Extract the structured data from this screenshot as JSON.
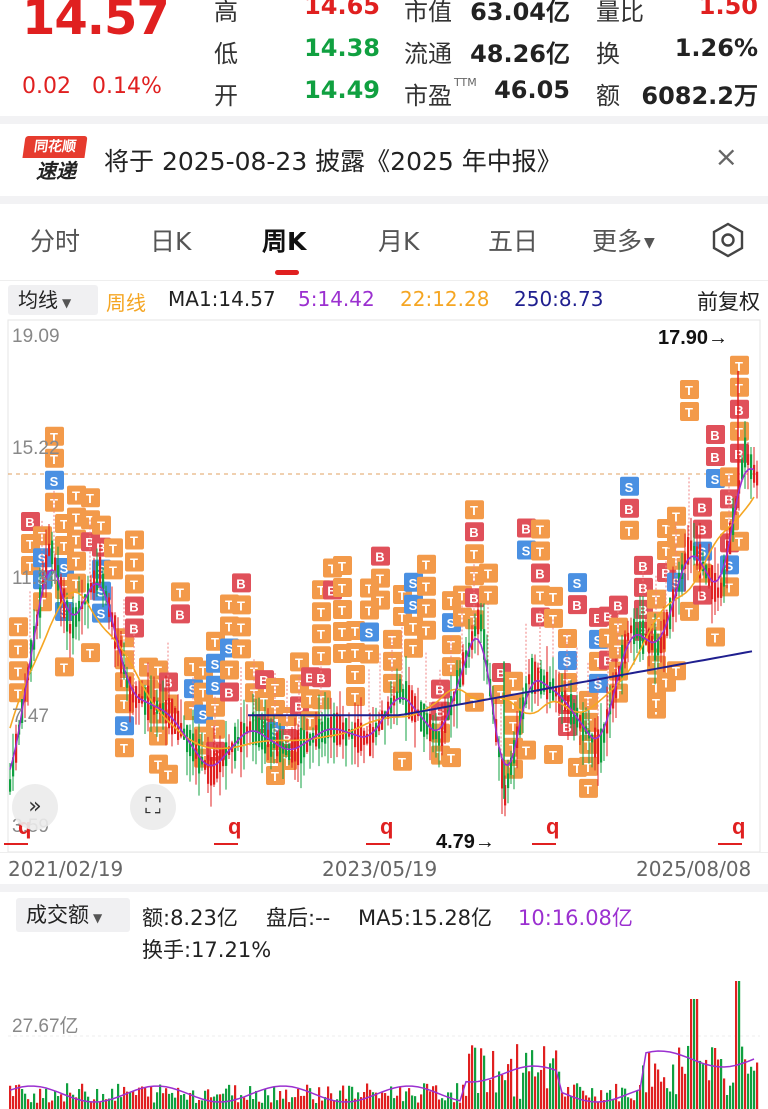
{
  "quote": {
    "price": "14.57",
    "change": "0.02",
    "change_pct": "0.14%",
    "high_label": "高",
    "high": "14.65",
    "low_label": "低",
    "low": "14.38",
    "open_label": "开",
    "open": "14.49",
    "mktcap_label": "市值",
    "mktcap": "63.04亿",
    "float_label": "流通",
    "float": "48.26亿",
    "pe_label": "市盈",
    "pe_sup": "TTM",
    "pe": "46.05",
    "vol_ratio_label": "量比",
    "vol_ratio": "1.50",
    "turnover_label": "换",
    "turnover": "1.26%",
    "amount_label": "额",
    "amount": "6082.2万"
  },
  "notice": {
    "logo_top": "同花顺",
    "logo_bottom": "速递",
    "text": "将于 2025-08-23 披露《2025 年中报》",
    "close": "×"
  },
  "tabs": [
    {
      "label": "分时"
    },
    {
      "label": "日K"
    },
    {
      "label": "周K"
    },
    {
      "label": "月K"
    },
    {
      "label": "五日"
    },
    {
      "label": "更多"
    }
  ],
  "active_tab": "周K",
  "ma_legend": {
    "select_label": "均线",
    "week": "周线",
    "ma1": "MA1:14.57",
    "ma5": "5:14.42",
    "ma22": "22:12.28",
    "ma250": "250:8.73",
    "adjust": "前复权"
  },
  "main_chart": {
    "y_max_label": "19.09",
    "y_mid_label": "15.22",
    "y_label_2": "11.34",
    "y_label_3": "7.47",
    "y_min_label": "3.59",
    "high_marker": "17.90→",
    "low_marker": "4.79→",
    "dates": [
      "2021/02/19",
      "2023/05/19",
      "2025/08/08"
    ],
    "signal_marker": "q",
    "ctrl_expand": "»",
    "ctrl_fullscreen": "⛶"
  },
  "chart_data": {
    "type": "candlestick",
    "x_range": [
      "2021/02/19",
      "2025/08/08"
    ],
    "ylim": [
      3.59,
      19.09
    ],
    "reference_line": 15.22,
    "period_high": 17.9,
    "period_low": 4.79,
    "ma": {
      "MA1": 14.57,
      "MA5": 14.42,
      "MA22": 12.28,
      "MA250": 8.73
    },
    "colors": {
      "up": "#e02020",
      "down": "#10a040",
      "ma5": "#9b30d0",
      "ma22": "#f5a623",
      "ma250": "#1f1f8f",
      "t_tag": "#f39a4a",
      "b_tag": "#e0505a",
      "s_tag": "#4a90e2"
    }
  },
  "volume": {
    "select_label": "成交额",
    "amount": "额:8.23亿",
    "after_hours": "盘后:--",
    "ma5": "MA5:15.28亿",
    "ma10": "10:16.08亿",
    "turnover": "换手:17.21%",
    "y_label": "27.67亿"
  }
}
